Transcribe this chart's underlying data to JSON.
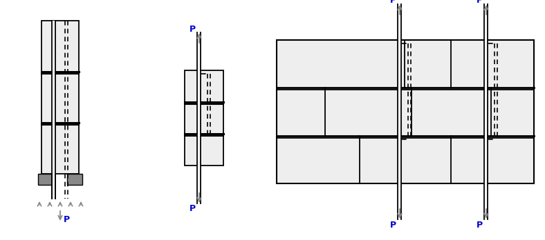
{
  "bg_color": "#ffffff",
  "line_color": "#000000",
  "fill_color": "#eeeeee",
  "gray_color": "#888888",
  "arrow_color": "#888888",
  "label_color": "#0000cc",
  "p_label": "P",
  "fig_width": 7.88,
  "fig_height": 3.48,
  "dpi": 100
}
